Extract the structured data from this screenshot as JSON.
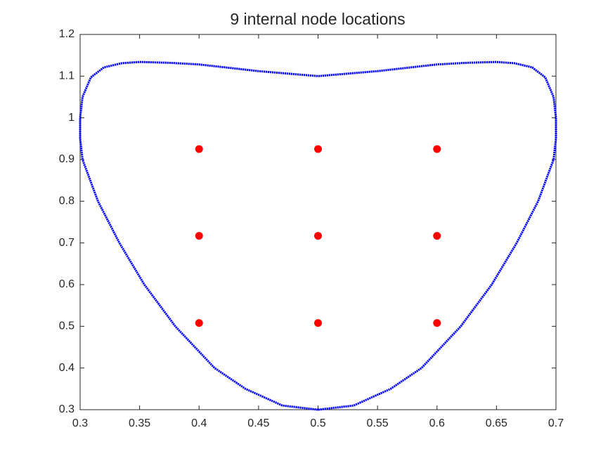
{
  "chart_data": {
    "type": "scatter",
    "title": "9 internal node locations",
    "xlim": [
      0.3,
      0.7
    ],
    "ylim": [
      0.3,
      1.2
    ],
    "xticks": [
      0.3,
      0.35,
      0.4,
      0.45,
      0.5,
      0.55,
      0.6,
      0.65,
      0.7
    ],
    "yticks": [
      0.3,
      0.4,
      0.5,
      0.6,
      0.7,
      0.8,
      0.9,
      1,
      1.1,
      1.2
    ],
    "grid": false,
    "box": true,
    "series": [
      {
        "color": "#0000ff",
        "style": "dotted-line",
        "x": [
          0.5,
          0.47,
          0.439,
          0.413,
          0.38,
          0.354,
          0.333,
          0.315,
          0.302,
          0.3,
          0.3,
          0.302,
          0.309,
          0.32,
          0.335,
          0.35,
          0.375,
          0.4,
          0.45,
          0.5,
          0.55,
          0.6,
          0.625,
          0.65,
          0.665,
          0.68,
          0.691,
          0.698,
          0.7,
          0.7,
          0.698,
          0.685,
          0.667,
          0.646,
          0.62,
          0.587,
          0.561,
          0.53,
          0.5
        ],
        "values": [
          0.3,
          0.31,
          0.35,
          0.4,
          0.5,
          0.6,
          0.7,
          0.8,
          0.9,
          0.95,
          1.0,
          1.05,
          1.097,
          1.121,
          1.131,
          1.134,
          1.132,
          1.128,
          1.112,
          1.1,
          1.112,
          1.128,
          1.132,
          1.134,
          1.131,
          1.121,
          1.097,
          1.05,
          1.0,
          0.95,
          0.9,
          0.8,
          0.7,
          0.6,
          0.5,
          0.4,
          0.35,
          0.31,
          0.3
        ]
      },
      {
        "color": "#ff0000",
        "style": "markers",
        "x": [
          0.4,
          0.5,
          0.6,
          0.4,
          0.5,
          0.6,
          0.4,
          0.5,
          0.6
        ],
        "values": [
          0.508,
          0.508,
          0.508,
          0.717,
          0.717,
          0.717,
          0.925,
          0.925,
          0.925
        ]
      }
    ]
  }
}
